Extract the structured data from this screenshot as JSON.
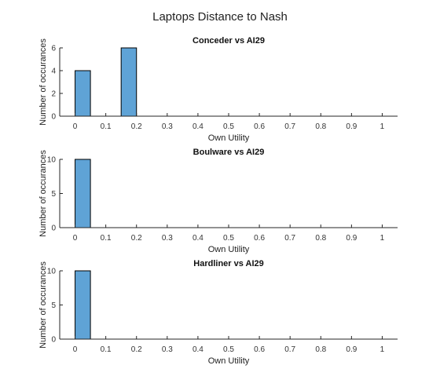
{
  "figure": {
    "title": "Laptops Distance to Nash"
  },
  "chart_data": [
    {
      "type": "bar",
      "title": "Conceder vs AI29",
      "xlabel": "Own Utility",
      "ylabel": "Number of occurances",
      "xlim": [
        -0.05,
        1.05
      ],
      "ylim": [
        0,
        6
      ],
      "x_ticks": [
        "0",
        "0.1",
        "0.2",
        "0.3",
        "0.4",
        "0.5",
        "0.6",
        "0.7",
        "0.8",
        "0.9",
        "1"
      ],
      "y_ticks": [
        "0",
        "2",
        "4",
        "6"
      ],
      "bin_width": 0.05,
      "bars": [
        {
          "x_start": 0.0,
          "value": 4
        },
        {
          "x_start": 0.15,
          "value": 6
        }
      ],
      "bar_color": "#5fa3d6",
      "grid": false
    },
    {
      "type": "bar",
      "title": "Boulware vs AI29",
      "xlabel": "Own Utility",
      "ylabel": "Number of occurances",
      "xlim": [
        -0.05,
        1.05
      ],
      "ylim": [
        0,
        10
      ],
      "x_ticks": [
        "0",
        "0.1",
        "0.2",
        "0.3",
        "0.4",
        "0.5",
        "0.6",
        "0.7",
        "0.8",
        "0.9",
        "1"
      ],
      "y_ticks": [
        "0",
        "5",
        "10"
      ],
      "bin_width": 0.05,
      "bars": [
        {
          "x_start": 0.0,
          "value": 10
        }
      ],
      "bar_color": "#5fa3d6",
      "grid": false
    },
    {
      "type": "bar",
      "title": "Hardliner vs AI29",
      "xlabel": "Own Utility",
      "ylabel": "Number of occurances",
      "xlim": [
        -0.05,
        1.05
      ],
      "ylim": [
        0,
        10
      ],
      "x_ticks": [
        "0",
        "0.1",
        "0.2",
        "0.3",
        "0.4",
        "0.5",
        "0.6",
        "0.7",
        "0.8",
        "0.9",
        "1"
      ],
      "y_ticks": [
        "0",
        "5",
        "10"
      ],
      "bin_width": 0.05,
      "bars": [
        {
          "x_start": 0.0,
          "value": 10
        }
      ],
      "bar_color": "#5fa3d6",
      "grid": false
    }
  ]
}
